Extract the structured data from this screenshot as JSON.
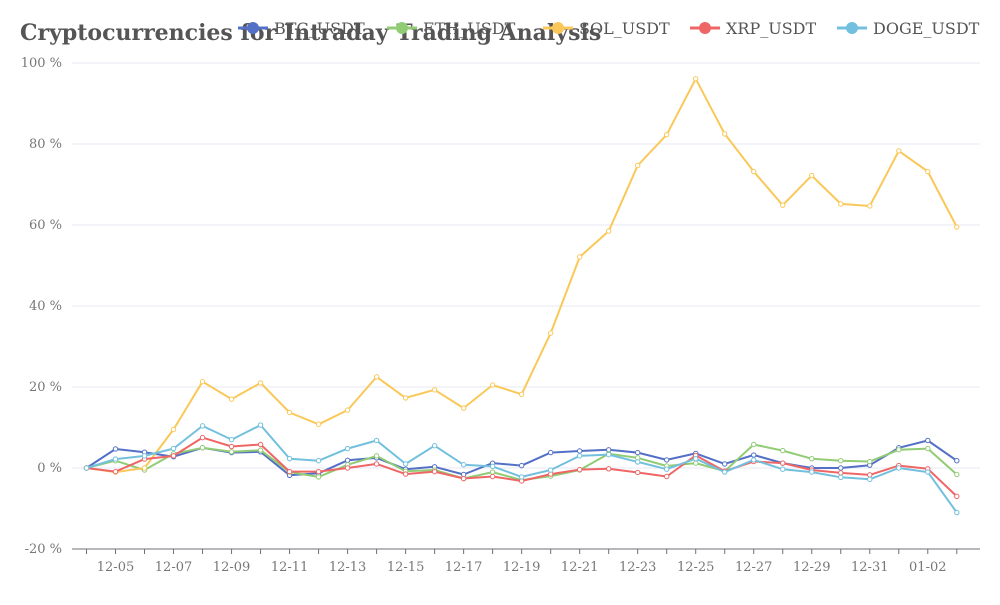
{
  "chart_data": {
    "type": "line",
    "title": "Cryptocurrencies for Intraday Trading Analysis",
    "xlabel": "",
    "ylabel": "",
    "ylim": [
      -20,
      100
    ],
    "yticks": [
      "-20 %",
      "0 %",
      "20 %",
      "40 %",
      "60 %",
      "80 %",
      "100 %"
    ],
    "x_ticks": [
      "12-05",
      "12-07",
      "12-09",
      "12-11",
      "12-13",
      "12-15",
      "12-17",
      "12-19",
      "12-21",
      "12-23",
      "12-25",
      "12-27",
      "12-29",
      "12-31",
      "01-02"
    ],
    "grid": "horizontal",
    "legend_position": "top",
    "x": [
      "12-04",
      "12-05",
      "12-06",
      "12-07",
      "12-08",
      "12-09",
      "12-10",
      "12-11",
      "12-12",
      "12-13",
      "12-14",
      "12-15",
      "12-16",
      "12-17",
      "12-18",
      "12-19",
      "12-20",
      "12-21",
      "12-22",
      "12-23",
      "12-24",
      "12-25",
      "12-26",
      "12-27",
      "12-28",
      "12-29",
      "12-30",
      "12-31",
      "01-01",
      "01-02",
      "01-03"
    ],
    "series": [
      {
        "name": "BTC_USDT",
        "color": "#5470c6",
        "values": [
          0,
          4.7,
          3.9,
          2.8,
          5.0,
          3.8,
          4.0,
          -1.8,
          -1.3,
          1.9,
          2.5,
          -0.3,
          0.3,
          -1.6,
          1.2,
          0.6,
          3.8,
          4.2,
          4.5,
          3.8,
          2.0,
          3.6,
          1.0,
          3.2,
          1.2,
          0.0,
          0.0,
          0.7,
          5.0,
          6.8,
          1.8
        ]
      },
      {
        "name": "ETH_USDT",
        "color": "#91cc75",
        "values": [
          0,
          1.8,
          -0.5,
          3.5,
          5.0,
          4.0,
          4.4,
          -1.0,
          -2.2,
          0.8,
          3.0,
          -0.8,
          -0.5,
          -2.6,
          -1.0,
          -3.0,
          -2.0,
          -0.5,
          3.5,
          2.5,
          0.5,
          1.2,
          -0.8,
          5.8,
          4.3,
          2.3,
          1.8,
          1.6,
          4.5,
          4.8,
          -1.6
        ]
      },
      {
        "name": "SOL_USDT",
        "color": "#fac858",
        "values": [
          0,
          -1.0,
          0.0,
          9.5,
          21.3,
          17.0,
          21.0,
          13.7,
          10.8,
          14.3,
          22.5,
          17.3,
          19.3,
          14.8,
          20.5,
          18.2,
          33.3,
          52.1,
          58.5,
          74.7,
          82.3,
          96.1,
          82.5,
          73.2,
          64.9,
          72.2,
          65.2,
          64.7,
          78.3,
          73.2,
          59.5
        ]
      },
      {
        "name": "XRP_USDT",
        "color": "#ee6666",
        "values": [
          0,
          -0.9,
          2.2,
          3.0,
          7.5,
          5.3,
          5.8,
          -0.9,
          -0.9,
          0.0,
          1.0,
          -1.5,
          -0.9,
          -2.6,
          -2.1,
          -3.2,
          -1.5,
          -0.4,
          -0.2,
          -1.1,
          -2.1,
          3.1,
          -0.8,
          1.6,
          1.2,
          -0.5,
          -1.2,
          -1.7,
          0.6,
          -0.2,
          -7.0
        ]
      },
      {
        "name": "DOGE_USDT",
        "color": "#73c0de",
        "values": [
          0,
          2.2,
          3.0,
          4.8,
          10.4,
          7.0,
          10.6,
          2.3,
          1.8,
          4.8,
          6.8,
          1.0,
          5.5,
          0.8,
          0.4,
          -2.2,
          -0.5,
          3.0,
          3.3,
          1.5,
          -0.3,
          2.3,
          -1.0,
          2.0,
          -0.3,
          -1.0,
          -2.3,
          -2.8,
          0.0,
          -1.0,
          -11.0
        ]
      }
    ]
  }
}
